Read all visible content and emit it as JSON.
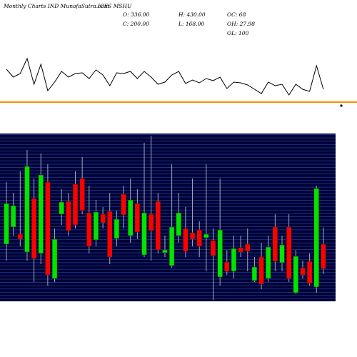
{
  "chart_data": {
    "type": "candlestick",
    "title": "Monthly Charts IND  MunafaSutra.com",
    "subtitle": "ICES MSHU",
    "annotations": [
      "O: 336.00",
      "H: 430.00",
      "OC: 68",
      "C: 200.00",
      "L: 168.00",
      "OH: 27.98",
      "OL: 100"
    ],
    "open": [
      336,
      432,
      392,
      292,
      592,
      284,
      684,
      144,
      504,
      576,
      672,
      704,
      512,
      360,
      504,
      520,
      368,
      616,
      384,
      564,
      276,
      504,
      576,
      288,
      216,
      384,
      424,
      400,
      416,
      372,
      356,
      152,
      236,
      184,
      316,
      336,
      132,
      264,
      144,
      432,
      232,
      432,
      64,
      204,
      240,
      96,
      336
    ],
    "high": [
      684,
      624,
      744,
      864,
      704,
      844,
      784,
      424,
      644,
      624,
      744,
      824,
      664,
      584,
      544,
      624,
      524,
      664,
      704,
      644,
      904,
      944,
      624,
      384,
      784,
      624,
      544,
      704,
      464,
      784,
      424,
      704,
      304,
      384,
      384,
      424,
      264,
      344,
      384,
      504,
      384,
      504,
      304,
      244,
      284,
      664,
      430
    ],
    "low": [
      244,
      384,
      324,
      244,
      124,
      224,
      104,
      124,
      444,
      384,
      424,
      504,
      284,
      324,
      424,
      224,
      324,
      424,
      344,
      364,
      264,
      244,
      284,
      264,
      204,
      344,
      264,
      324,
      264,
      184,
      24,
      104,
      164,
      144,
      264,
      184,
      124,
      84,
      124,
      184,
      184,
      124,
      56,
      144,
      104,
      64,
      168
    ],
    "close": [
      564,
      552,
      364,
      772,
      256,
      724,
      164,
      364,
      572,
      412,
      444,
      524,
      324,
      516,
      456,
      264,
      476,
      500,
      584,
      404,
      512,
      412,
      304,
      304,
      432,
      512,
      296,
      364,
      324,
      392,
      272,
      416,
      184,
      312,
      292,
      296,
      208,
      112,
      320,
      240,
      332,
      144,
      268,
      164,
      116,
      648,
      200
    ],
    "up_color": "#00e400",
    "down_color": "#ff0000",
    "ylim": [
      24,
      944
    ],
    "indicator": {
      "values": [
        43,
        32,
        37,
        58,
        22,
        50,
        13,
        25,
        40,
        32,
        37,
        38,
        30,
        42,
        35,
        20,
        38,
        37,
        40,
        30,
        40,
        32,
        22,
        25,
        35,
        40,
        23,
        28,
        24,
        30,
        27,
        32,
        16,
        25,
        24,
        21,
        15,
        9,
        25,
        20,
        22,
        7,
        22,
        15,
        12,
        48,
        15
      ],
      "ylim": [
        0,
        80
      ],
      "color": "#000000"
    },
    "divider_color": "#ff8c00"
  }
}
